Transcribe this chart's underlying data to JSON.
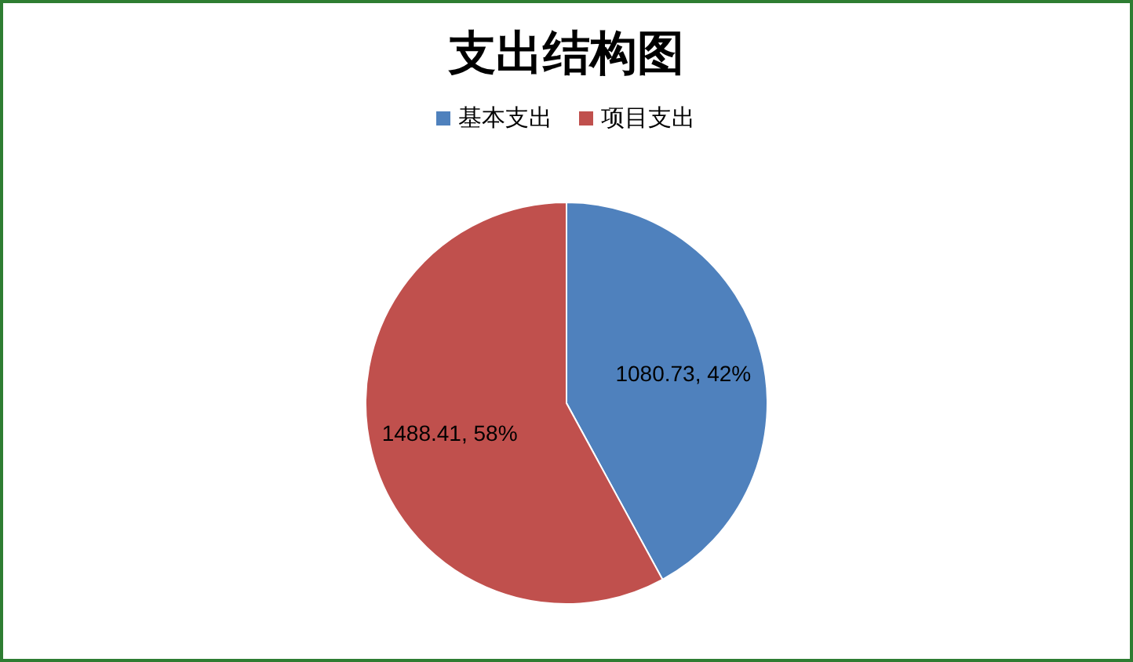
{
  "chart_data": {
    "type": "pie",
    "title": "支出结构图",
    "categories": [
      "基本支出",
      "项目支出"
    ],
    "values": [
      1080.73,
      1488.41
    ],
    "colors": [
      "#4f81bd",
      "#c0504d"
    ],
    "value_labels": [
      "1080.73, 42%",
      "1488.41, 58%"
    ],
    "legend": "top"
  }
}
